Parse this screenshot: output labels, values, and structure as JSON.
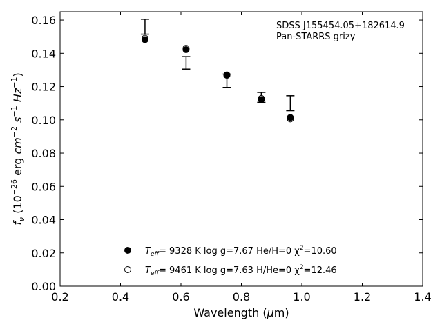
{
  "chart_data": {
    "type": "scatter",
    "xlabel_main": "Wavelength (",
    "xlabel_mu": "μ",
    "xlabel_tail": "m)",
    "ylabel": "",
    "xlim": [
      0.2,
      1.4
    ],
    "ylim": [
      0.0,
      0.165
    ],
    "x_ticks": [
      "0.2",
      "0.4",
      "0.6",
      "0.8",
      "1.0",
      "1.2",
      "1.4"
    ],
    "y_ticks": [
      "0.00",
      "0.02",
      "0.04",
      "0.06",
      "0.08",
      "0.10",
      "0.12",
      "0.14",
      "0.16"
    ],
    "annotation_line1": "SDSS J155454.05+182614.9",
    "annotation_line2": "Pan-STARRS grizy",
    "observed": [
      {
        "x": 0.481,
        "low": 0.1515,
        "high": 0.1605
      },
      {
        "x": 0.617,
        "low": 0.1305,
        "high": 0.138
      },
      {
        "x": 0.752,
        "low": 0.1195,
        "high": 0.1275
      },
      {
        "x": 0.866,
        "low": 0.1105,
        "high": 0.1165
      },
      {
        "x": 0.962,
        "low": 0.1055,
        "high": 0.1145
      }
    ],
    "series": [
      {
        "marker": "filled",
        "label_teff": "T",
        "label_sub": "eff",
        "label_rest": "=  9328 K  log g=7.67  He/H=0  χ",
        "label_sup": "2",
        "label_end": "=10.60",
        "points": [
          {
            "x": 0.481,
            "y": 0.1482
          },
          {
            "x": 0.617,
            "y": 0.1422
          },
          {
            "x": 0.752,
            "y": 0.127
          },
          {
            "x": 0.866,
            "y": 0.1122
          },
          {
            "x": 0.962,
            "y": 0.1014
          }
        ]
      },
      {
        "marker": "open",
        "label_teff": "T",
        "label_sub": "eff",
        "label_rest": "=  9461 K  log g=7.63  H/He=0  χ",
        "label_sup": "2",
        "label_end": "=12.46",
        "points": [
          {
            "x": 0.481,
            "y": 0.149
          },
          {
            "x": 0.617,
            "y": 0.143
          },
          {
            "x": 0.752,
            "y": 0.1268
          },
          {
            "x": 0.866,
            "y": 0.1128
          },
          {
            "x": 0.962,
            "y": 0.1006
          }
        ]
      }
    ]
  }
}
